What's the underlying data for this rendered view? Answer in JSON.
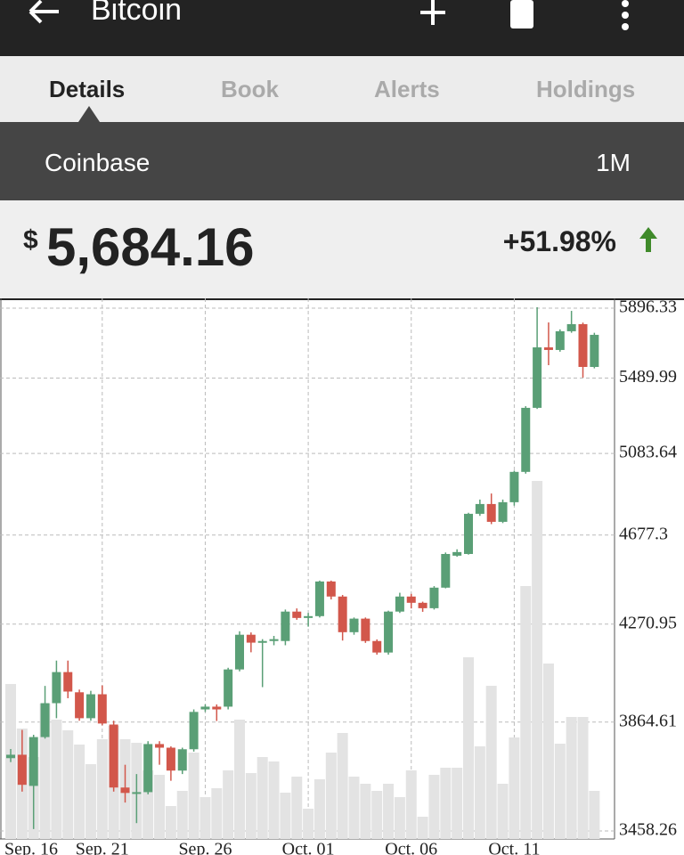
{
  "app_bar": {
    "title": "Bitcoin"
  },
  "tabs": [
    "Details",
    "Book",
    "Alerts",
    "Holdings"
  ],
  "market": {
    "exchange": "Coinbase",
    "period": "1M"
  },
  "quote": {
    "currency": "$",
    "price": "5,684.16",
    "change": "+51.98%"
  },
  "chart_data": {
    "type": "candlestick",
    "categories": [
      null,
      null,
      null,
      null,
      null,
      null,
      null,
      null,
      null,
      null,
      null,
      null,
      null,
      null,
      null,
      null,
      null,
      null,
      null,
      null,
      null,
      null,
      null,
      null,
      null,
      null,
      null,
      null,
      null,
      null,
      null,
      null,
      null,
      null,
      null,
      null,
      null,
      null,
      null,
      null,
      null,
      null,
      null,
      null,
      null,
      null,
      null,
      null,
      null,
      null,
      null,
      null
    ],
    "open": [
      3725,
      3738,
      3621,
      3806,
      3940,
      4067,
      3984,
      3880,
      3976,
      3855,
      3615,
      3592,
      3598,
      3779,
      3765,
      3678,
      3759,
      3915,
      3926,
      3926,
      4078,
      4225,
      4191,
      4198,
      4198,
      4326,
      4298,
      4306,
      4461,
      4393,
      4236,
      4295,
      4198,
      4149,
      4326,
      4393,
      4365,
      4341,
      4433,
      4580,
      4588,
      4780,
      4828,
      4741,
      4837,
      4989,
      5326,
      5665,
      5650,
      5759,
      5801,
      5553
    ],
    "high": [
      3760,
      3834,
      3815,
      4010,
      4115,
      4115,
      3995,
      3990,
      4012,
      3870,
      3700,
      3665,
      3790,
      3790,
      3770,
      3765,
      3915,
      3935,
      3935,
      4085,
      4240,
      4235,
      4206,
      4220,
      4335,
      4340,
      4320,
      4465,
      4465,
      4400,
      4300,
      4300,
      4205,
      4330,
      4410,
      4405,
      4370,
      4440,
      4595,
      4610,
      4785,
      4850,
      4880,
      4850,
      4995,
      5335,
      5902,
      5811,
      5770,
      5880,
      5810,
      5750
    ],
    "low": [
      3710,
      3600,
      3465,
      3800,
      3880,
      3960,
      3870,
      3870,
      3852,
      3600,
      3560,
      3486,
      3590,
      3700,
      3640,
      3665,
      3750,
      3905,
      3869,
      3915,
      4070,
      4150,
      4005,
      4180,
      4180,
      4290,
      4260,
      4300,
      4380,
      4200,
      4225,
      4190,
      4140,
      4140,
      4320,
      4340,
      4325,
      4335,
      4430,
      4575,
      4585,
      4770,
      4730,
      4735,
      4820,
      4980,
      5320,
      5563,
      5640,
      5750,
      5493,
      5545
    ],
    "close": [
      3738,
      3625,
      3806,
      3940,
      4067,
      3987,
      3880,
      3976,
      3859,
      3615,
      3595,
      3598,
      3779,
      3765,
      3678,
      3759,
      3905,
      3926,
      3915,
      4078,
      4225,
      4191,
      4198,
      4206,
      4326,
      4298,
      4306,
      4461,
      4393,
      4236,
      4295,
      4198,
      4149,
      4326,
      4393,
      4365,
      4341,
      4433,
      4588,
      4597,
      4780,
      4828,
      4741,
      4837,
      4989,
      5326,
      5665,
      5650,
      5759,
      5801,
      5553,
      5738
    ],
    "volume": [
      174,
      124,
      92,
      152,
      134,
      122,
      106,
      84,
      112,
      127,
      112,
      108,
      77,
      72,
      37,
      54,
      97,
      47,
      57,
      77,
      134,
      74,
      92,
      87,
      52,
      70,
      34,
      67,
      97,
      119,
      70,
      62,
      54,
      62,
      47,
      77,
      25,
      72,
      80,
      80,
      204,
      104,
      172,
      62,
      114,
      284,
      402,
      197,
      107,
      137,
      137,
      54
    ],
    "up_color": "#5a9f76",
    "down_color": "#d2574b",
    "volume_color": "#e3e3e3",
    "log_y": true,
    "ylim": [
      3458.26,
      5896.33
    ],
    "yticks": [
      3458.26,
      3864.61,
      4270.95,
      4677.3,
      5083.64,
      5489.99,
      5896.33
    ],
    "xticks": [
      {
        "value": -1,
        "label": "Sep. 16"
      },
      {
        "value": 8,
        "label": "Sep. 21"
      },
      {
        "value": 17,
        "label": "Sep. 26"
      },
      {
        "value": 26,
        "label": "Oct. 01"
      },
      {
        "value": 35,
        "label": "Oct. 06"
      },
      {
        "value": 44,
        "label": "Oct. 11"
      }
    ],
    "grid": true
  }
}
